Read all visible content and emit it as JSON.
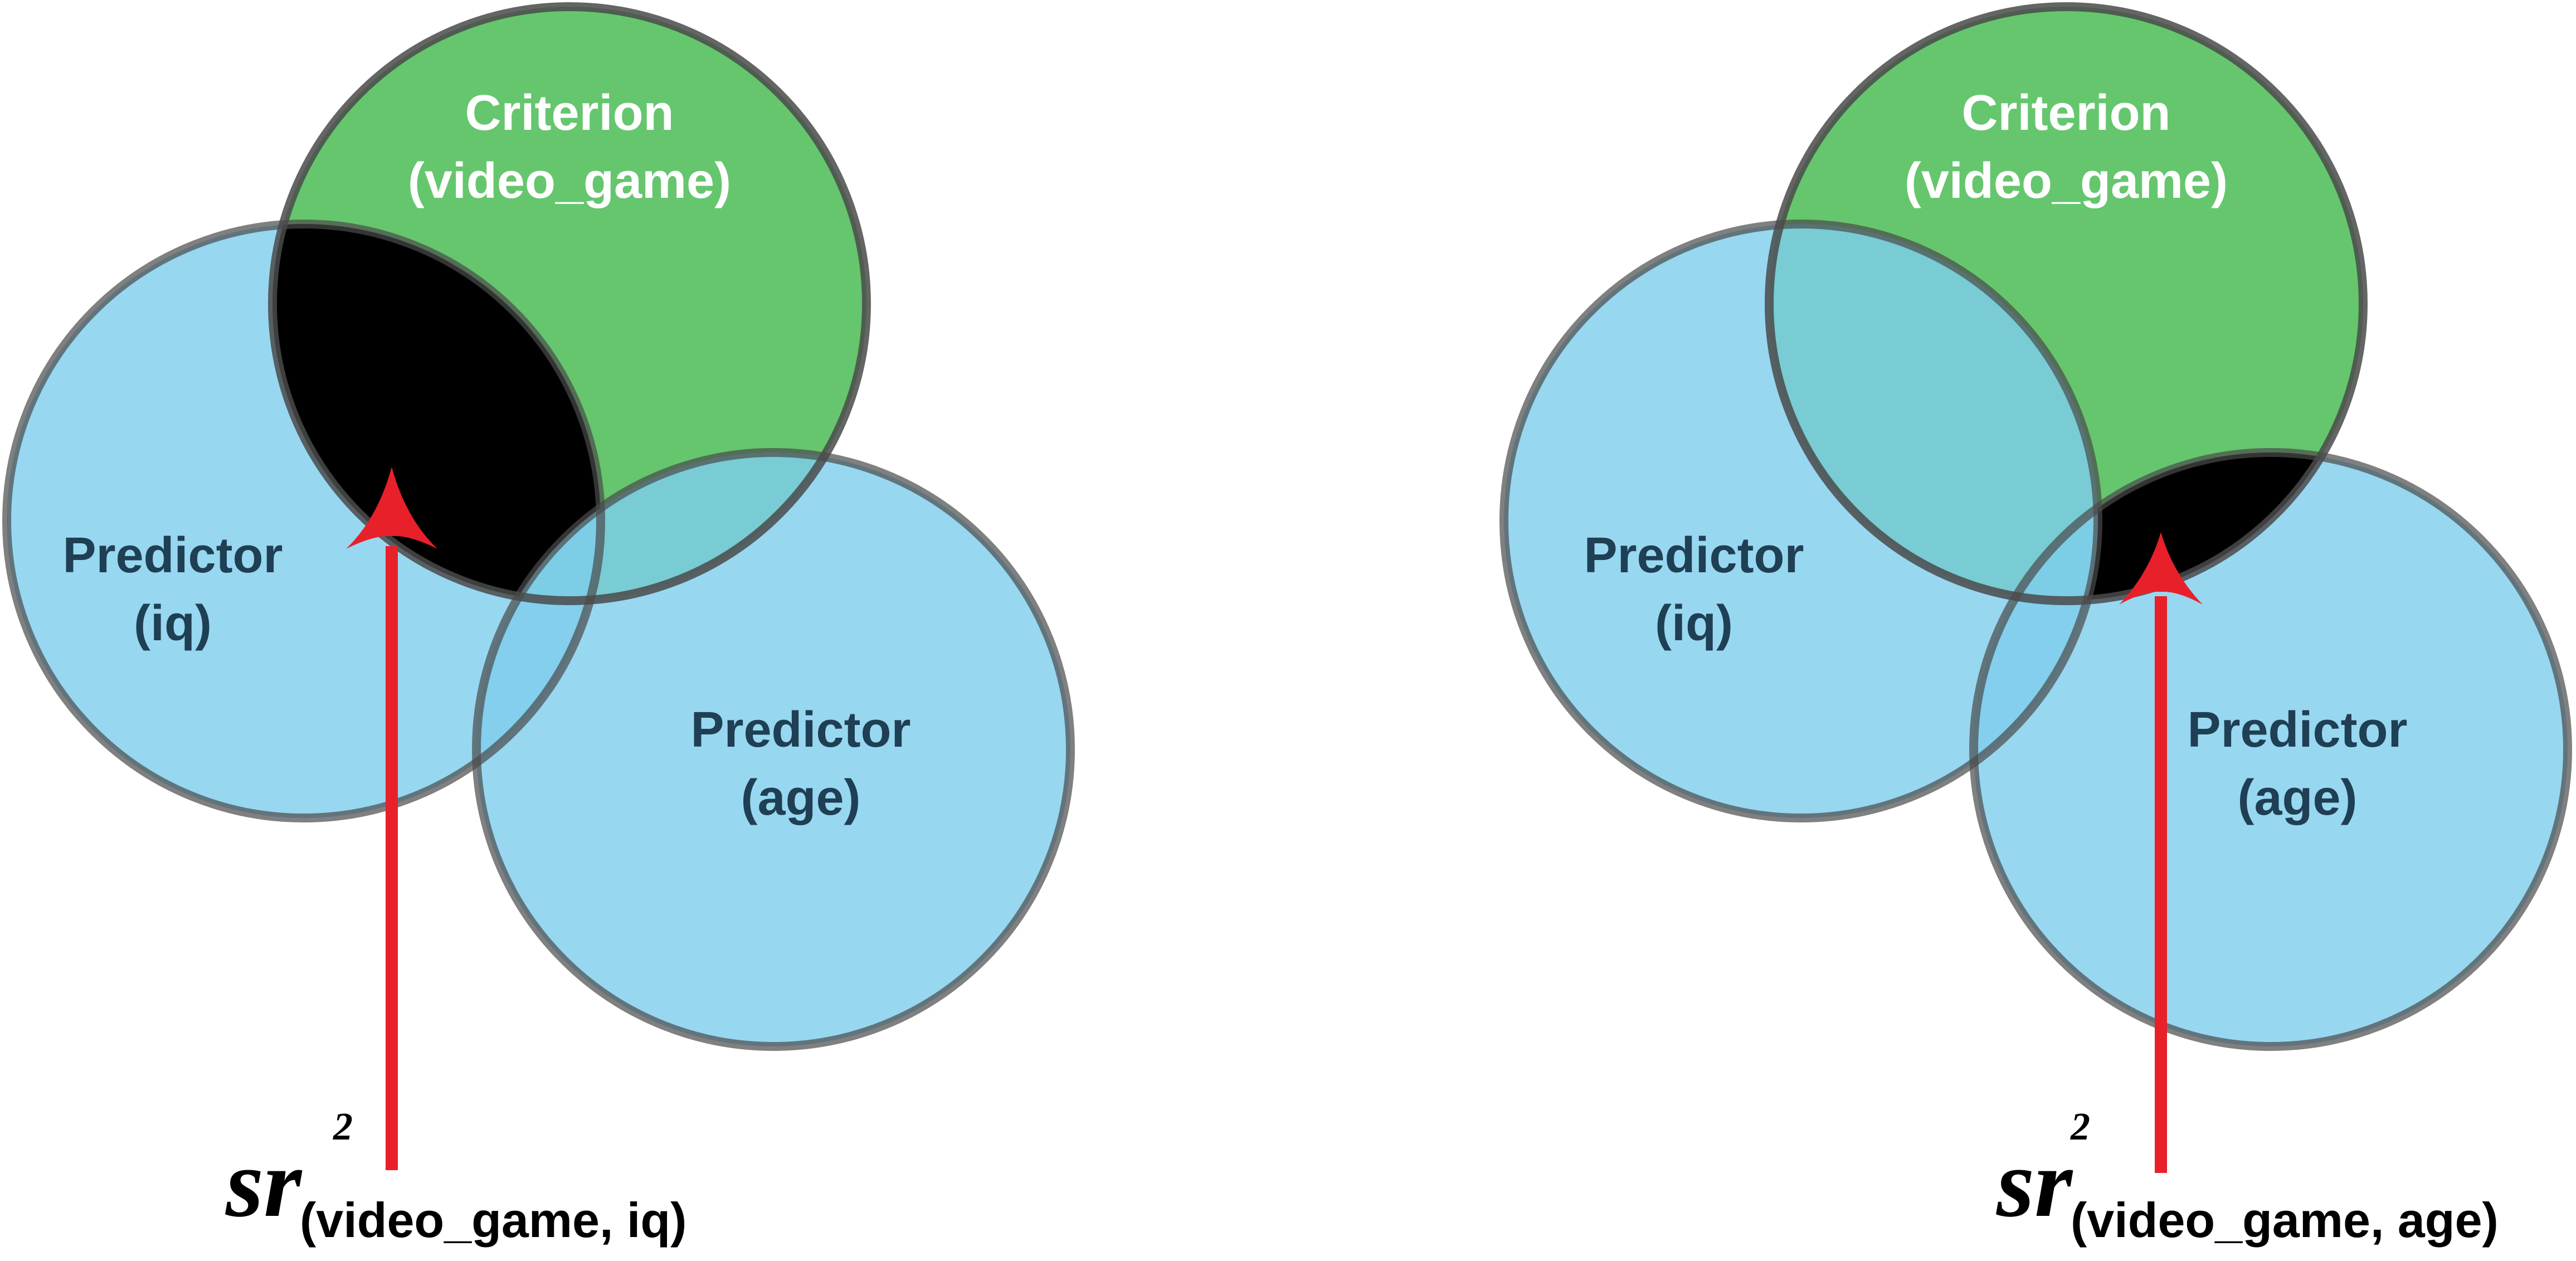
{
  "colors": {
    "predictor_fill": "#7ECDEC",
    "criterion_fill": "#3FB84A",
    "shared_region": "#000000",
    "circle_outline": "#4A4A4A",
    "arrow": "#E8202A",
    "criterion_text": "#FFFFFF",
    "predictor_text": "#1F3F54"
  },
  "panels": [
    {
      "criterion": {
        "line1": "Criterion",
        "line2": "(video_game)"
      },
      "predictor_iq": {
        "line1": "Predictor",
        "line2": "(iq)"
      },
      "predictor_age": {
        "line1": "Predictor",
        "line2": "(age)"
      },
      "label": {
        "symbol": "sr",
        "superscript": "2",
        "subscript": "(video_game, iq)"
      },
      "highlighted": "iq"
    },
    {
      "criterion": {
        "line1": "Criterion",
        "line2": "(video_game)"
      },
      "predictor_iq": {
        "line1": "Predictor",
        "line2": "(iq)"
      },
      "predictor_age": {
        "line1": "Predictor",
        "line2": "(age)"
      },
      "label": {
        "symbol": "sr",
        "superscript": "2",
        "subscript": "(video_game, age)"
      },
      "highlighted": "age"
    }
  ]
}
